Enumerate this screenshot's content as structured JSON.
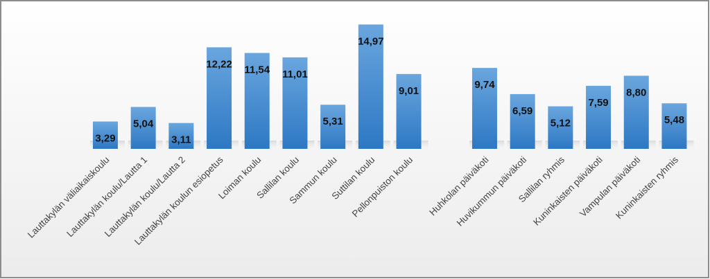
{
  "chart_data": {
    "type": "bar",
    "categories": [
      "Lauttakylän väliaikaiskoulu",
      "Lauttakylän koulu/Lautta 1",
      "Lauttakylän koulu/Lautta 2",
      "Lauttakylän koulun esiopetus",
      "Loiman koulu",
      "Sallilan koulu",
      "Sammun koulu",
      "Suttilan koulu",
      "Pellonpuiston koulu",
      null,
      "Huhkolan päiväkoti",
      "Huvikummun päiväkoti",
      "Sallilan ryhmis",
      "Kuninkaisten päiväkoti",
      "Vampulan päiväkoti",
      "Kuninkaisten ryhmis"
    ],
    "values": [
      3.29,
      5.04,
      3.11,
      12.22,
      11.54,
      11.01,
      5.31,
      14.97,
      9.01,
      null,
      9.74,
      6.59,
      5.12,
      7.59,
      8.8,
      5.48
    ],
    "value_labels": [
      "3,29",
      "5,04",
      "3,11",
      "12,22",
      "11,54",
      "11,01",
      "5,31",
      "14,97",
      "9,01",
      null,
      "9,74",
      "6,59",
      "5,12",
      "7,59",
      "8,80",
      "5,48"
    ],
    "color": "#3f87d0",
    "ylim": [
      0,
      16
    ]
  }
}
